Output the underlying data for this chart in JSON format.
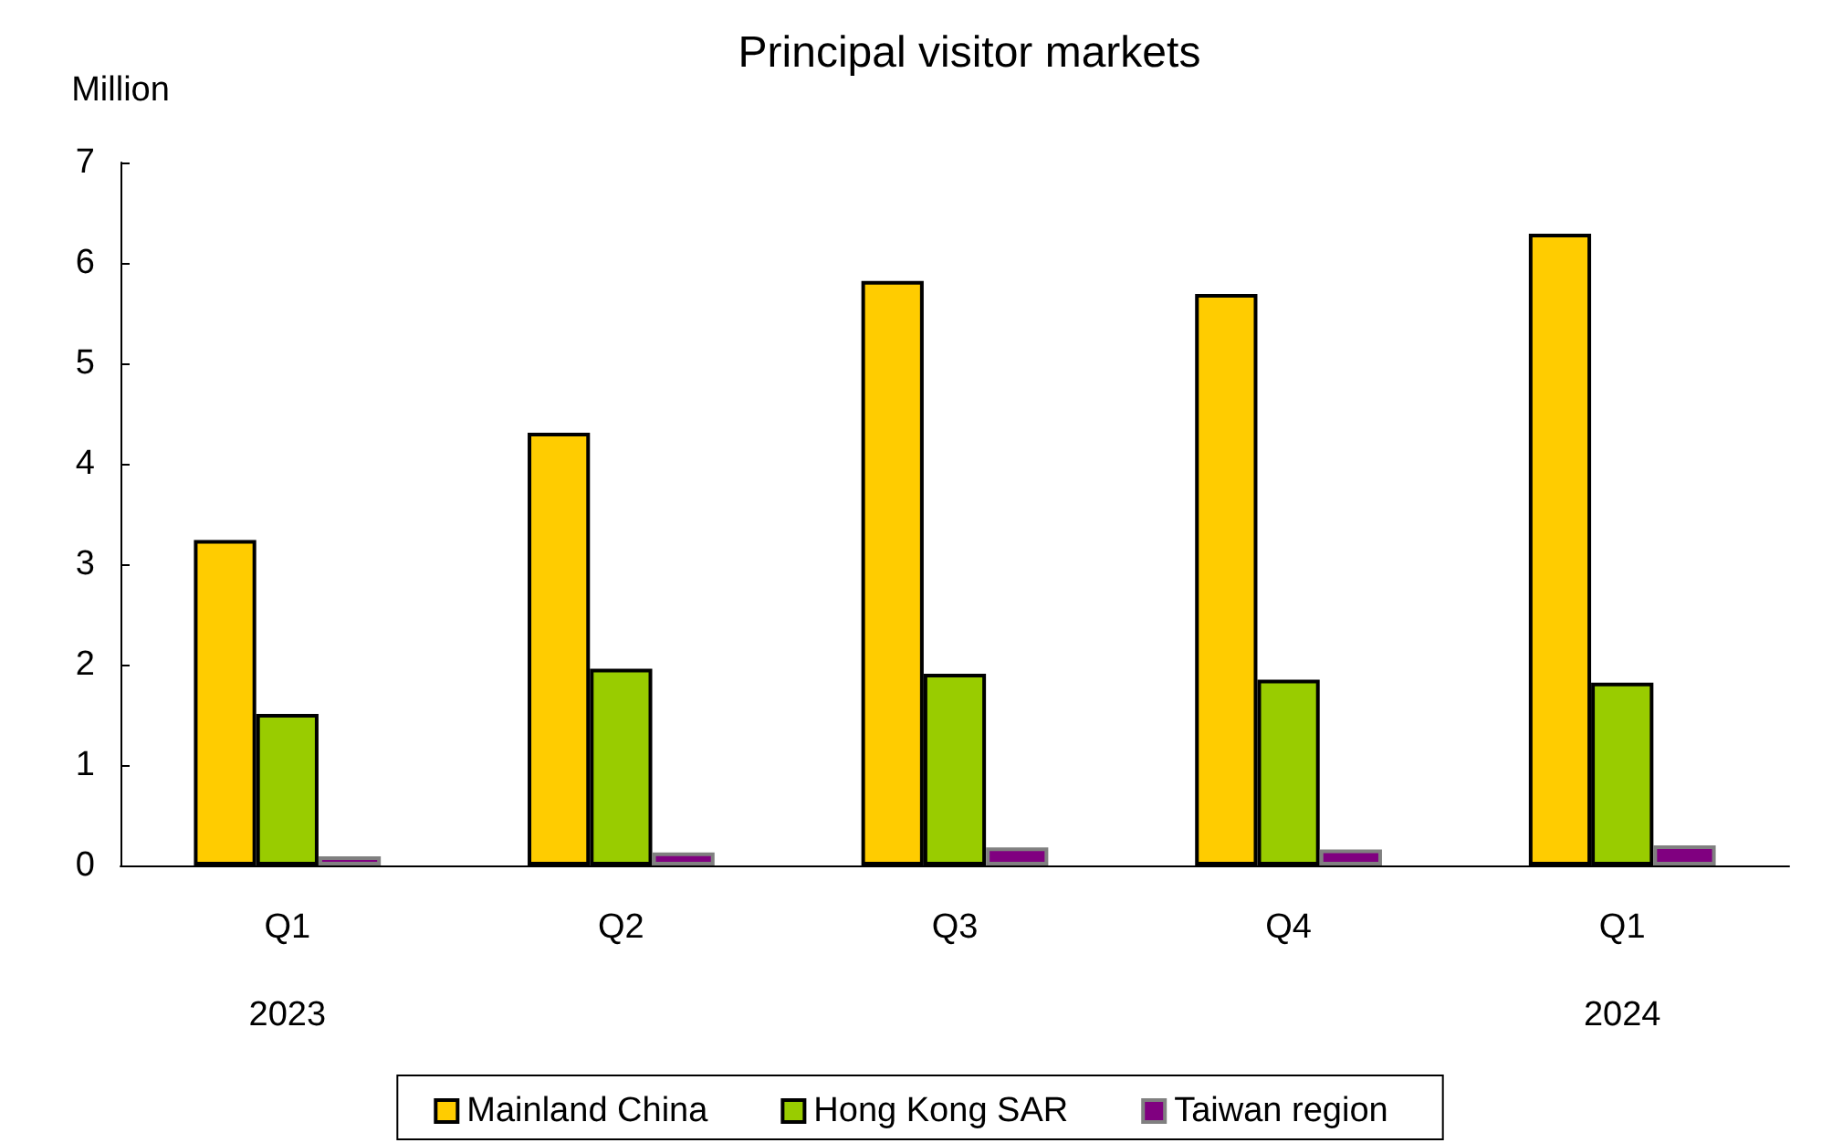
{
  "chart_data": {
    "type": "bar",
    "title": "Principal visitor markets",
    "ylabel": "Million",
    "categories": [
      "Q1\n2023",
      "Q2",
      "Q3",
      "Q4",
      "Q1\n2024"
    ],
    "series": [
      {
        "name": "Mainland China",
        "color": "#ffcc00",
        "values": [
          3.24,
          4.31,
          5.82,
          5.69,
          6.29
        ]
      },
      {
        "name": "Hong Kong SAR",
        "color": "#99cc00",
        "values": [
          1.51,
          1.96,
          1.91,
          1.85,
          1.82
        ]
      },
      {
        "name": "Taiwan region",
        "color": "#800080",
        "values": [
          0.09,
          0.13,
          0.18,
          0.16,
          0.2
        ]
      }
    ],
    "ylim": [
      0,
      7
    ],
    "yticks": [
      0,
      1,
      2,
      3,
      4,
      5,
      6,
      7
    ],
    "grid": false,
    "legend": "bottom"
  }
}
